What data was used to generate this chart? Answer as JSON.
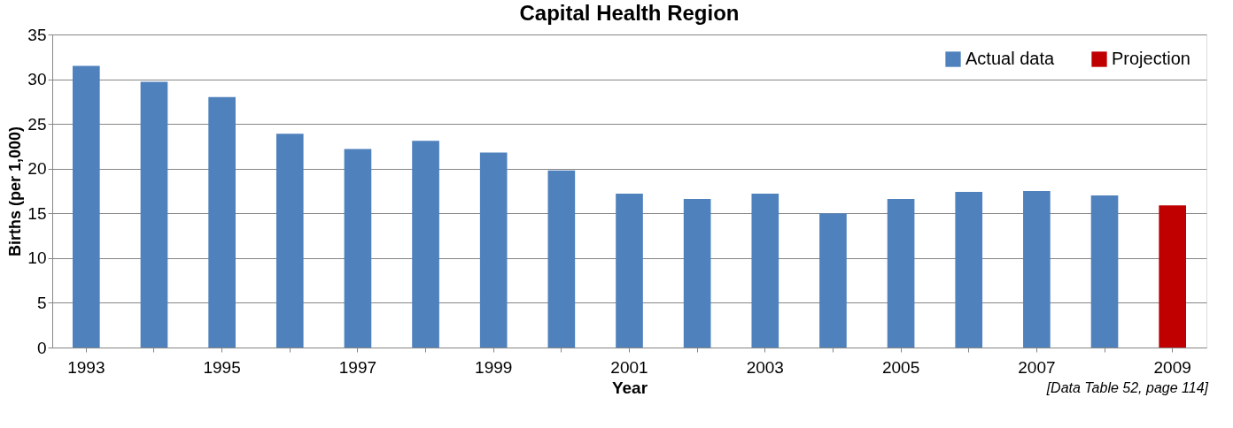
{
  "chart_data": {
    "type": "bar",
    "title": "Capital Health Region",
    "xlabel": "Year",
    "ylabel": "Births (per 1,000)",
    "categories": [
      "1993",
      null,
      "1995",
      null,
      "1997",
      null,
      "1999",
      null,
      "2001",
      null,
      "2003",
      null,
      "2005",
      null,
      "2007",
      null,
      "2009"
    ],
    "series": [
      {
        "name": "Actual data",
        "color": "#4f81bd",
        "values": [
          31.5,
          29.7,
          28.0,
          23.9,
          22.2,
          23.1,
          21.8,
          19.8,
          17.2,
          16.6,
          17.2,
          15.0,
          16.6,
          17.4,
          17.5,
          17.0,
          null
        ]
      },
      {
        "name": "Projection",
        "color": "#c00000",
        "values": [
          null,
          null,
          null,
          null,
          null,
          null,
          null,
          null,
          null,
          null,
          null,
          null,
          null,
          null,
          null,
          null,
          15.9
        ]
      }
    ],
    "ylim": [
      0,
      35
    ],
    "yticks": [
      0,
      5,
      10,
      15,
      20,
      25,
      30,
      35
    ],
    "grid": "y",
    "legend": "top right",
    "annotations": [
      "[Data Table 52, page 114]"
    ]
  }
}
